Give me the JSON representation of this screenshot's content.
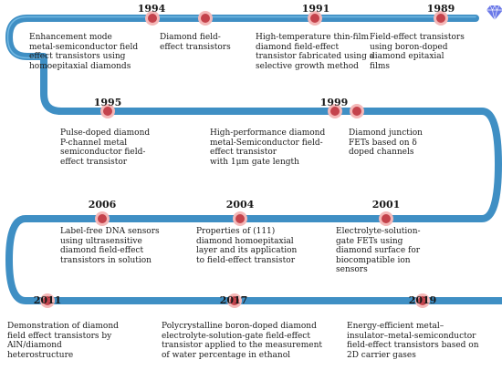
{
  "timeline": {
    "colors": {
      "track": "#3f8fc4",
      "track_highlight": "#7fc2ea",
      "node_fill": "#c4434c",
      "node_ring": "#f4b8b8",
      "diamond": "#6a78e8"
    },
    "icon": "diamond-gem-icon",
    "events": [
      {
        "year": "1994",
        "lines": [
          "Enhancement mode",
          "metal-semiconductor field",
          "effect transistors using",
          "homoepitaxial diamonds"
        ]
      },
      {
        "year": "1994",
        "lines": [
          "Diamond field-",
          "effect transistors"
        ]
      },
      {
        "year": "1991",
        "lines": [
          "High-temperature thin-film",
          "diamond field-effect",
          "transistor fabricated using a",
          "selective growth method"
        ]
      },
      {
        "year": "1989",
        "lines": [
          "Field-effect transistors",
          "using boron-doped",
          "diamond epitaxial",
          "films"
        ]
      },
      {
        "year": "1995",
        "lines": [
          "Pulse-doped diamond",
          "P-channel metal",
          "semiconductor field-",
          "effect transistor"
        ]
      },
      {
        "year": "1999",
        "lines": [
          "High-performance diamond",
          "metal-Semiconductor field-",
          "effect transistor",
          "with 1μm gate length"
        ]
      },
      {
        "year": "",
        "lines": [
          "Diamond junction",
          "FETs based on δ",
          "doped channels"
        ]
      },
      {
        "year": "2006",
        "lines": [
          "Label-free DNA sensors",
          "using ultrasensitive",
          "diamond field-effect",
          "transistors in solution"
        ]
      },
      {
        "year": "2004",
        "lines": [
          "Properties of (111)",
          "diamond homoepitaxial",
          "layer and its application",
          "to field-effect transistor"
        ]
      },
      {
        "year": "2001",
        "lines": [
          "Electrolyte-solution-",
          "gate FETs using",
          "diamond surface for",
          "biocompatible ion",
          "sensors"
        ]
      },
      {
        "year": "2011",
        "lines": [
          "Demonstration of diamond",
          "field effect transistors by",
          "AlN/diamond",
          "heterostructure"
        ]
      },
      {
        "year": "2017",
        "lines": [
          "Polycrystalline boron-doped diamond",
          "electrolyte-solution-gate field-effect",
          "transistor applied to the measurement",
          "of water percentage in ethanol"
        ]
      },
      {
        "year": "2019",
        "lines": [
          "Energy-efficient metal–",
          "insulator–metal-semiconductor",
          "field-effect transistors based on",
          "2D carrier gases"
        ]
      }
    ]
  }
}
